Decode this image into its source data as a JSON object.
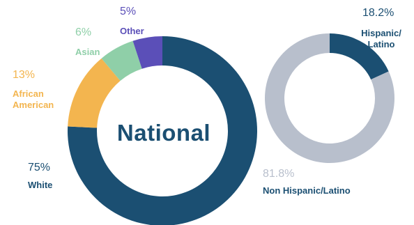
{
  "chart_data": [
    {
      "type": "pie",
      "title": "National",
      "slices": [
        {
          "label": "White",
          "pct_text": "75%",
          "value": 75,
          "color": "#1b4f72"
        },
        {
          "label": "African American",
          "pct_text": "13%",
          "value": 13,
          "color": "#f3b54f"
        },
        {
          "label": "Asian",
          "pct_text": "6%",
          "value": 6,
          "color": "#8fcfa8"
        },
        {
          "label": "Other",
          "pct_text": "5%",
          "value": 5,
          "color": "#5b4fb8"
        }
      ]
    },
    {
      "type": "pie",
      "title": "",
      "slices": [
        {
          "label": "Hispanic/ Latino",
          "pct_text": "18.2%",
          "value": 18.2,
          "color": "#1b4f72"
        },
        {
          "label": "Non Hispanic/Latino",
          "pct_text": "81.8%",
          "value": 81.8,
          "color": "#b8bfcc"
        }
      ]
    }
  ]
}
